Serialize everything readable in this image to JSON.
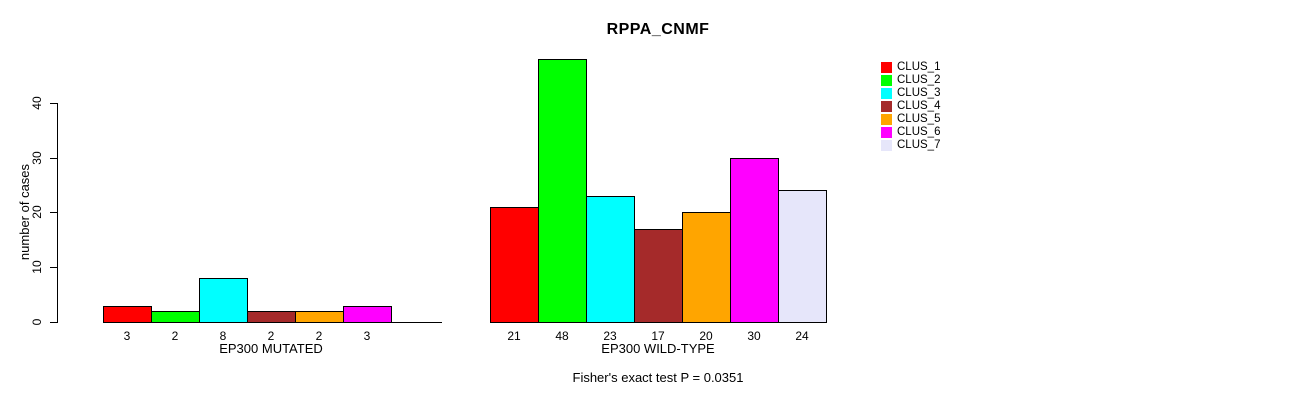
{
  "title": "RPPA_CNMF",
  "footer": "Fisher's exact test P = 0.0351",
  "chart_data": {
    "type": "bar",
    "title": "RPPA_CNMF",
    "ylabel": "number of cases",
    "ylim": [
      0,
      48
    ],
    "yticks": [
      0,
      10,
      20,
      30,
      40
    ],
    "grid": false,
    "legend_position": "right",
    "categories": [
      "CLUS_1",
      "CLUS_2",
      "CLUS_3",
      "CLUS_4",
      "CLUS_5",
      "CLUS_6",
      "CLUS_7"
    ],
    "colors": [
      "#FF0000",
      "#00FF00",
      "#00FFFF",
      "#A52A2A",
      "#FFA500",
      "#FF00FF",
      "#E6E6FA"
    ],
    "panels": [
      {
        "xlabel": "EP300 MUTATED",
        "values": [
          3,
          2,
          8,
          2,
          2,
          3,
          0
        ],
        "bar_labels": [
          "3",
          "2",
          "8",
          "2",
          "2",
          "3",
          ""
        ]
      },
      {
        "xlabel": "EP300 WILD-TYPE",
        "values": [
          21,
          48,
          23,
          17,
          20,
          30,
          24
        ],
        "bar_labels": [
          "21",
          "48",
          "23",
          "17",
          "20",
          "30",
          "24"
        ]
      }
    ],
    "annotation": "Fisher's exact test P = 0.0351"
  },
  "legend": {
    "items": [
      {
        "label": "CLUS_1",
        "color": "#FF0000"
      },
      {
        "label": "CLUS_2",
        "color": "#00FF00"
      },
      {
        "label": "CLUS_3",
        "color": "#00FFFF"
      },
      {
        "label": "CLUS_4",
        "color": "#A52A2A"
      },
      {
        "label": "CLUS_5",
        "color": "#FFA500"
      },
      {
        "label": "CLUS_6",
        "color": "#FF00FF"
      },
      {
        "label": "CLUS_7",
        "color": "#E6E6FA"
      }
    ]
  }
}
